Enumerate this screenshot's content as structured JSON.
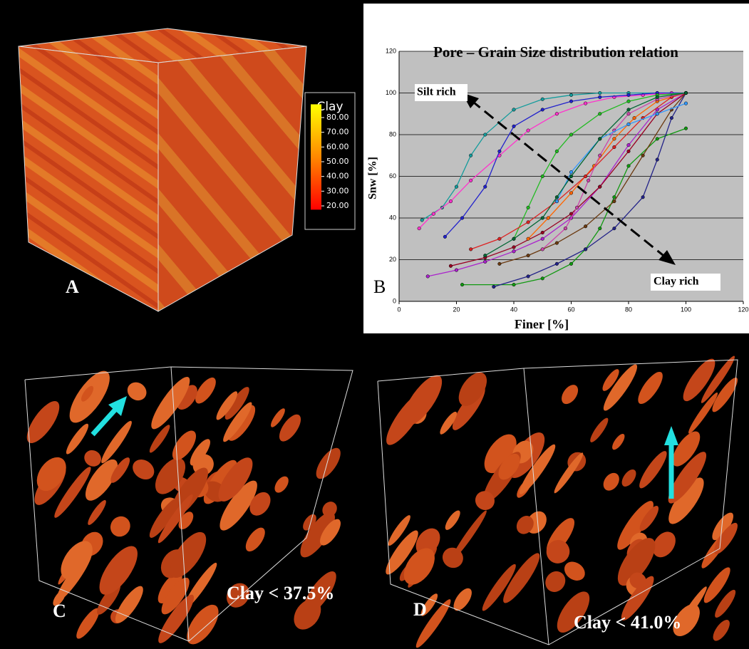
{
  "panels": {
    "a": {
      "label": "A",
      "colorbar": {
        "title": "Clay",
        "ticks": [
          {
            "value": 80,
            "label": "80.00"
          },
          {
            "value": 70,
            "label": "70.00"
          },
          {
            "value": 60,
            "label": "60.00"
          },
          {
            "value": 50,
            "label": "50.00"
          },
          {
            "value": 40,
            "label": "40.00"
          },
          {
            "value": 30,
            "label": "30.00"
          },
          {
            "value": 20,
            "label": "20.00"
          }
        ]
      }
    },
    "c": {
      "label": "C",
      "caption": "Clay < 37.5%"
    },
    "d": {
      "label": "D",
      "caption": "Clay < 41.0%"
    }
  },
  "chart_data": {
    "type": "line",
    "title": "Pore – Grain Size distribution relation",
    "panel_label": "B",
    "x_label": "Finer [%]",
    "y_label": "Snw [%]",
    "annotations": [
      "Silt rich",
      "Clay rich"
    ],
    "xlim": [
      0,
      120
    ],
    "ylim": [
      0,
      120
    ],
    "xticks": [
      0,
      20,
      40,
      60,
      80,
      100,
      120
    ],
    "yticks": [
      0,
      20,
      40,
      60,
      80,
      100,
      120
    ],
    "grid": true,
    "series": [
      {
        "color": "#149c9c",
        "x": [
          8,
          15,
          20,
          25,
          30,
          40,
          50,
          60,
          70,
          80,
          90,
          100
        ],
        "values": [
          39,
          45,
          55,
          70,
          80,
          92,
          97,
          99,
          100,
          100,
          100,
          100
        ]
      },
      {
        "color": "#ff33cc",
        "x": [
          7,
          12,
          18,
          25,
          35,
          45,
          55,
          65,
          75,
          85,
          95,
          100
        ],
        "values": [
          35,
          42,
          48,
          58,
          70,
          82,
          90,
          95,
          98,
          99,
          100,
          100
        ]
      },
      {
        "color": "#2222cc",
        "x": [
          16,
          22,
          30,
          35,
          40,
          50,
          60,
          70,
          80,
          90,
          100
        ],
        "values": [
          31,
          40,
          55,
          72,
          84,
          92,
          96,
          98,
          99,
          100,
          100
        ]
      },
      {
        "color": "#aa22cc",
        "x": [
          10,
          20,
          30,
          40,
          50,
          60,
          70,
          80,
          90,
          100
        ],
        "values": [
          12,
          15,
          19,
          24,
          30,
          40,
          55,
          75,
          92,
          100
        ]
      },
      {
        "color": "#990022",
        "x": [
          18,
          30,
          40,
          50,
          60,
          70,
          80,
          90,
          100
        ],
        "values": [
          17,
          21,
          26,
          33,
          42,
          55,
          72,
          90,
          100
        ]
      },
      {
        "color": "#119911",
        "x": [
          22,
          40,
          50,
          60,
          65,
          70,
          75,
          80,
          90,
          100
        ],
        "values": [
          8,
          8,
          11,
          18,
          25,
          35,
          50,
          65,
          78,
          83
        ]
      },
      {
        "color": "#222288",
        "x": [
          33,
          45,
          55,
          65,
          75,
          85,
          90,
          95,
          100
        ],
        "values": [
          7,
          12,
          18,
          25,
          35,
          50,
          68,
          88,
          100
        ]
      },
      {
        "color": "#6b3a10",
        "x": [
          35,
          45,
          55,
          65,
          75,
          85,
          95,
          100
        ],
        "values": [
          18,
          22,
          28,
          36,
          48,
          70,
          92,
          100
        ]
      },
      {
        "color": "#ff6600",
        "x": [
          45,
          52,
          60,
          68,
          75,
          82,
          90,
          100
        ],
        "values": [
          30,
          40,
          52,
          65,
          78,
          88,
          96,
          100
        ]
      },
      {
        "color": "#22bb22",
        "x": [
          40,
          45,
          50,
          55,
          60,
          70,
          80,
          90,
          100
        ],
        "values": [
          30,
          45,
          60,
          72,
          80,
          90,
          96,
          99,
          100
        ]
      },
      {
        "color": "#dd2222",
        "x": [
          25,
          35,
          45,
          55,
          65,
          75,
          85,
          95,
          100
        ],
        "values": [
          25,
          30,
          38,
          48,
          60,
          74,
          88,
          98,
          100
        ]
      },
      {
        "color": "#cc44aa",
        "x": [
          50,
          58,
          62,
          66,
          70,
          75,
          80,
          90,
          100
        ],
        "values": [
          25,
          35,
          45,
          58,
          70,
          82,
          90,
          97,
          100
        ]
      },
      {
        "color": "#3399ff",
        "x": [
          55,
          60,
          70,
          80,
          90,
          100
        ],
        "values": [
          48,
          62,
          78,
          85,
          90,
          95
        ]
      },
      {
        "color": "#006633",
        "x": [
          30,
          40,
          50,
          55,
          60,
          70,
          80,
          90,
          100
        ],
        "values": [
          22,
          30,
          40,
          50,
          60,
          78,
          92,
          98,
          100
        ]
      }
    ]
  }
}
